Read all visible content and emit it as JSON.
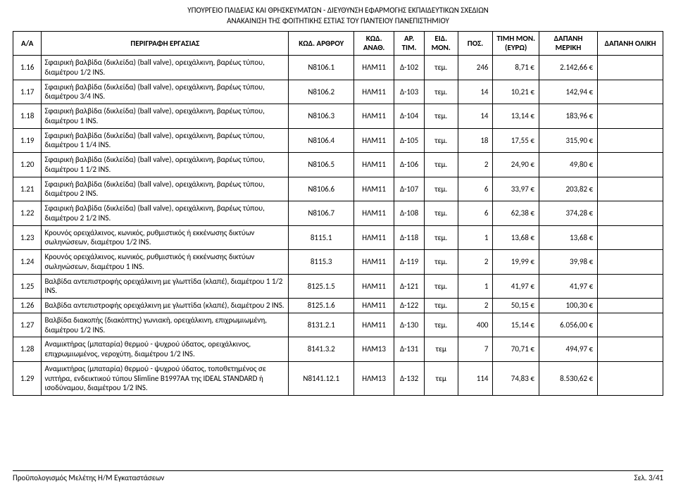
{
  "header": {
    "line1": "ΥΠΟΥΡΓΕΙΟ ΠΑΙΔΕΙΑΣ ΚΑΙ ΘΡΗΣΚΕΥΜΑΤΩΝ - ΔΙΕΥΘΥΝΣΗ ΕΦΑΡΜΟΓΗΣ ΕΚΠΑΙΔΕΥΤΙΚΩΝ ΣΧΕΔΙΩΝ",
    "line2": "ΑΝΑΚΑΙΝΙΣΗ ΤΗΣ ΦΟΙΤΗΤΙΚΗΣ ΕΣΤΙΑΣ ΤΟΥ ΠΑΝΤΕΙΟΥ ΠΑΝΕΠΙΣΤΗΜΙΟΥ"
  },
  "columns": {
    "aa": "Α/Α",
    "desc": "ΠΕΡΙΓΡΑΦΗ ΕΡΓΑΣΙΑΣ",
    "kod": "ΚΩΔ. ΑΡΘΡΟΥ",
    "anath": "ΚΩΔ. ΑΝΑΘ.",
    "artim": "ΑΡ. ΤΙΜ.",
    "eidmon": "ΕΙΔ. ΜΟΝ.",
    "pos": "ΠΟΣ.",
    "timi": "ΤΙΜΗ ΜΟΝ. (ΕΥΡΩ)",
    "meriki": "ΔΑΠΑΝΗ ΜΕΡΙΚΗ",
    "oliki": "ΔΑΠΑΝΗ ΟΛΙΚΗ"
  },
  "rows": [
    {
      "aa": "1.16",
      "desc": "Σφαιρική βαλβίδα (δικλείδα) (ball valve), ορειχάλκινη, βαρέως τύπου, διαμέτρου 1/2 INS.",
      "kod": "N8106.1",
      "anath": "ΗΛΜ11",
      "artim": "Δ-102",
      "eidmon": "τεμ.",
      "pos": "246",
      "timi": "8,71 €",
      "meriki": "2.142,66 €",
      "oliki": ""
    },
    {
      "aa": "1.17",
      "desc": "Σφαιρική βαλβίδα (δικλείδα) (ball valve), ορειχάλκινη, βαρέως τύπου, διαμέτρου 3/4 INS.",
      "kod": "N8106.2",
      "anath": "ΗΛΜ11",
      "artim": "Δ-103",
      "eidmon": "τεμ.",
      "pos": "14",
      "timi": "10,21 €",
      "meriki": "142,94 €",
      "oliki": ""
    },
    {
      "aa": "1.18",
      "desc": "Σφαιρική βαλβίδα (δικλείδα) (ball valve), ορειχάλκινη, βαρέως τύπου, διαμέτρου 1 INS.",
      "kod": "N8106.3",
      "anath": "ΗΛΜ11",
      "artim": "Δ-104",
      "eidmon": "τεμ.",
      "pos": "14",
      "timi": "13,14 €",
      "meriki": "183,96 €",
      "oliki": ""
    },
    {
      "aa": "1.19",
      "desc": "Σφαιρική βαλβίδα (δικλείδα) (ball valve), ορειχάλκινη, βαρέως τύπου, διαμέτρου 1 1/4 INS.",
      "kod": "N8106.4",
      "anath": "ΗΛΜ11",
      "artim": "Δ-105",
      "eidmon": "τεμ.",
      "pos": "18",
      "timi": "17,55 €",
      "meriki": "315,90 €",
      "oliki": ""
    },
    {
      "aa": "1.20",
      "desc": "Σφαιρική βαλβίδα (δικλείδα) (ball valve), ορειχάλκινη, βαρέως τύπου, διαμέτρου 1 1/2 INS.",
      "kod": "N8106.5",
      "anath": "ΗΛΜ11",
      "artim": "Δ-106",
      "eidmon": "τεμ.",
      "pos": "2",
      "timi": "24,90 €",
      "meriki": "49,80 €",
      "oliki": ""
    },
    {
      "aa": "1.21",
      "desc": "Σφαιρική βαλβίδα (δικλείδα) (ball valve), ορειχάλκινη, βαρέως τύπου, διαμέτρου 2 INS.",
      "kod": "N8106.6",
      "anath": "ΗΛΜ11",
      "artim": "Δ-107",
      "eidmon": "τεμ.",
      "pos": "6",
      "timi": "33,97 €",
      "meriki": "203,82 €",
      "oliki": ""
    },
    {
      "aa": "1.22",
      "desc": "Σφαιρική βαλβίδα (δικλείδα) (ball valve), ορειχάλκινη, βαρέως τύπου, διαμέτρου 2 1/2 INS.",
      "kod": "N8106.7",
      "anath": "ΗΛΜ11",
      "artim": "Δ-108",
      "eidmon": "τεμ.",
      "pos": "6",
      "timi": "62,38 €",
      "meriki": "374,28 €",
      "oliki": ""
    },
    {
      "aa": "1.23",
      "desc": "Κρουνός ορειχάλκινος, κωνικός, ρυθμιστικός ή εκκένωσης δικτύων σωληνώσεων, διαμέτρου 1/2 INS.",
      "kod": "8115.1",
      "anath": "ΗΛΜ11",
      "artim": "Δ-118",
      "eidmon": "τεμ.",
      "pos": "1",
      "timi": "13,68 €",
      "meriki": "13,68 €",
      "oliki": ""
    },
    {
      "aa": "1.24",
      "desc": "Κρουνός ορειχάλκινος, κωνικός, ρυθμιστικός ή εκκένωσης δικτύων σωληνώσεων, διαμέτρου 1 INS.",
      "kod": "8115.3",
      "anath": "ΗΛΜ11",
      "artim": "Δ-119",
      "eidmon": "τεμ.",
      "pos": "2",
      "timi": "19,99 €",
      "meriki": "39,98 €",
      "oliki": ""
    },
    {
      "aa": "1.25",
      "desc": "Βαλβίδα αντεπιστροφής ορειχάλκινη με γλωττίδα (κλαπέ), διαμέτρου 1 1/2 INS.",
      "kod": "8125.1.5",
      "anath": "ΗΛΜ11",
      "artim": "Δ-121",
      "eidmon": "τεμ.",
      "pos": "1",
      "timi": "41,97 €",
      "meriki": "41,97 €",
      "oliki": ""
    },
    {
      "aa": "1.26",
      "desc": "Βαλβίδα αντεπιστροφής ορειχάλκινη με γλωττίδα (κλαπέ), διαμέτρου 2 INS.",
      "kod": "8125.1.6",
      "anath": "ΗΛΜ11",
      "artim": "Δ-122",
      "eidmon": "τεμ.",
      "pos": "2",
      "timi": "50,15 €",
      "meriki": "100,30 €",
      "oliki": ""
    },
    {
      "aa": "1.27",
      "desc": "Βαλβίδα διακοπής (διακόπτης) γωνιακή, ορειχάλκινη, επιχρωμιωμένη, διαμέτρου 1/2 INS.",
      "kod": "8131.2.1",
      "anath": "ΗΛΜ11",
      "artim": "Δ-130",
      "eidmon": "τεμ.",
      "pos": "400",
      "timi": "15,14 €",
      "meriki": "6.056,00 €",
      "oliki": ""
    },
    {
      "aa": "1.28",
      "desc": "Αναμικτήρας (μπαταρία) θερμού - ψυχρού ύδατος, ορειχάλκινος, επιχρωμιωμένος, νεροχύτη, διαμέτρου 1/2 INS.",
      "kod": "8141.3.2",
      "anath": "ΗΛΜ13",
      "artim": "Δ-131",
      "eidmon": "τεμ",
      "pos": "7",
      "timi": "70,71 €",
      "meriki": "494,97 €",
      "oliki": ""
    },
    {
      "aa": "1.29",
      "desc": "Αναμικτήρας (μπαταρία) θερμού - ψυχρού ύδατος, τοποθετημένος σε νιπτήρα, ενδεικτικού τύπου Slimline B1997AA της IDEAL STANDARD ή ισοδύναμου, διαμέτρου 1/2 INS.",
      "kod": "N8141.12.1",
      "anath": "ΗΛΜ13",
      "artim": "Δ-132",
      "eidmon": "τεμ",
      "pos": "114",
      "timi": "74,83 €",
      "meriki": "8.530,62 €",
      "oliki": ""
    }
  ],
  "footer": {
    "left": "Προϋπολογισμός Μελέτης Η/Μ Εγκαταστάσεων",
    "right": "Σελ. 3/41"
  }
}
